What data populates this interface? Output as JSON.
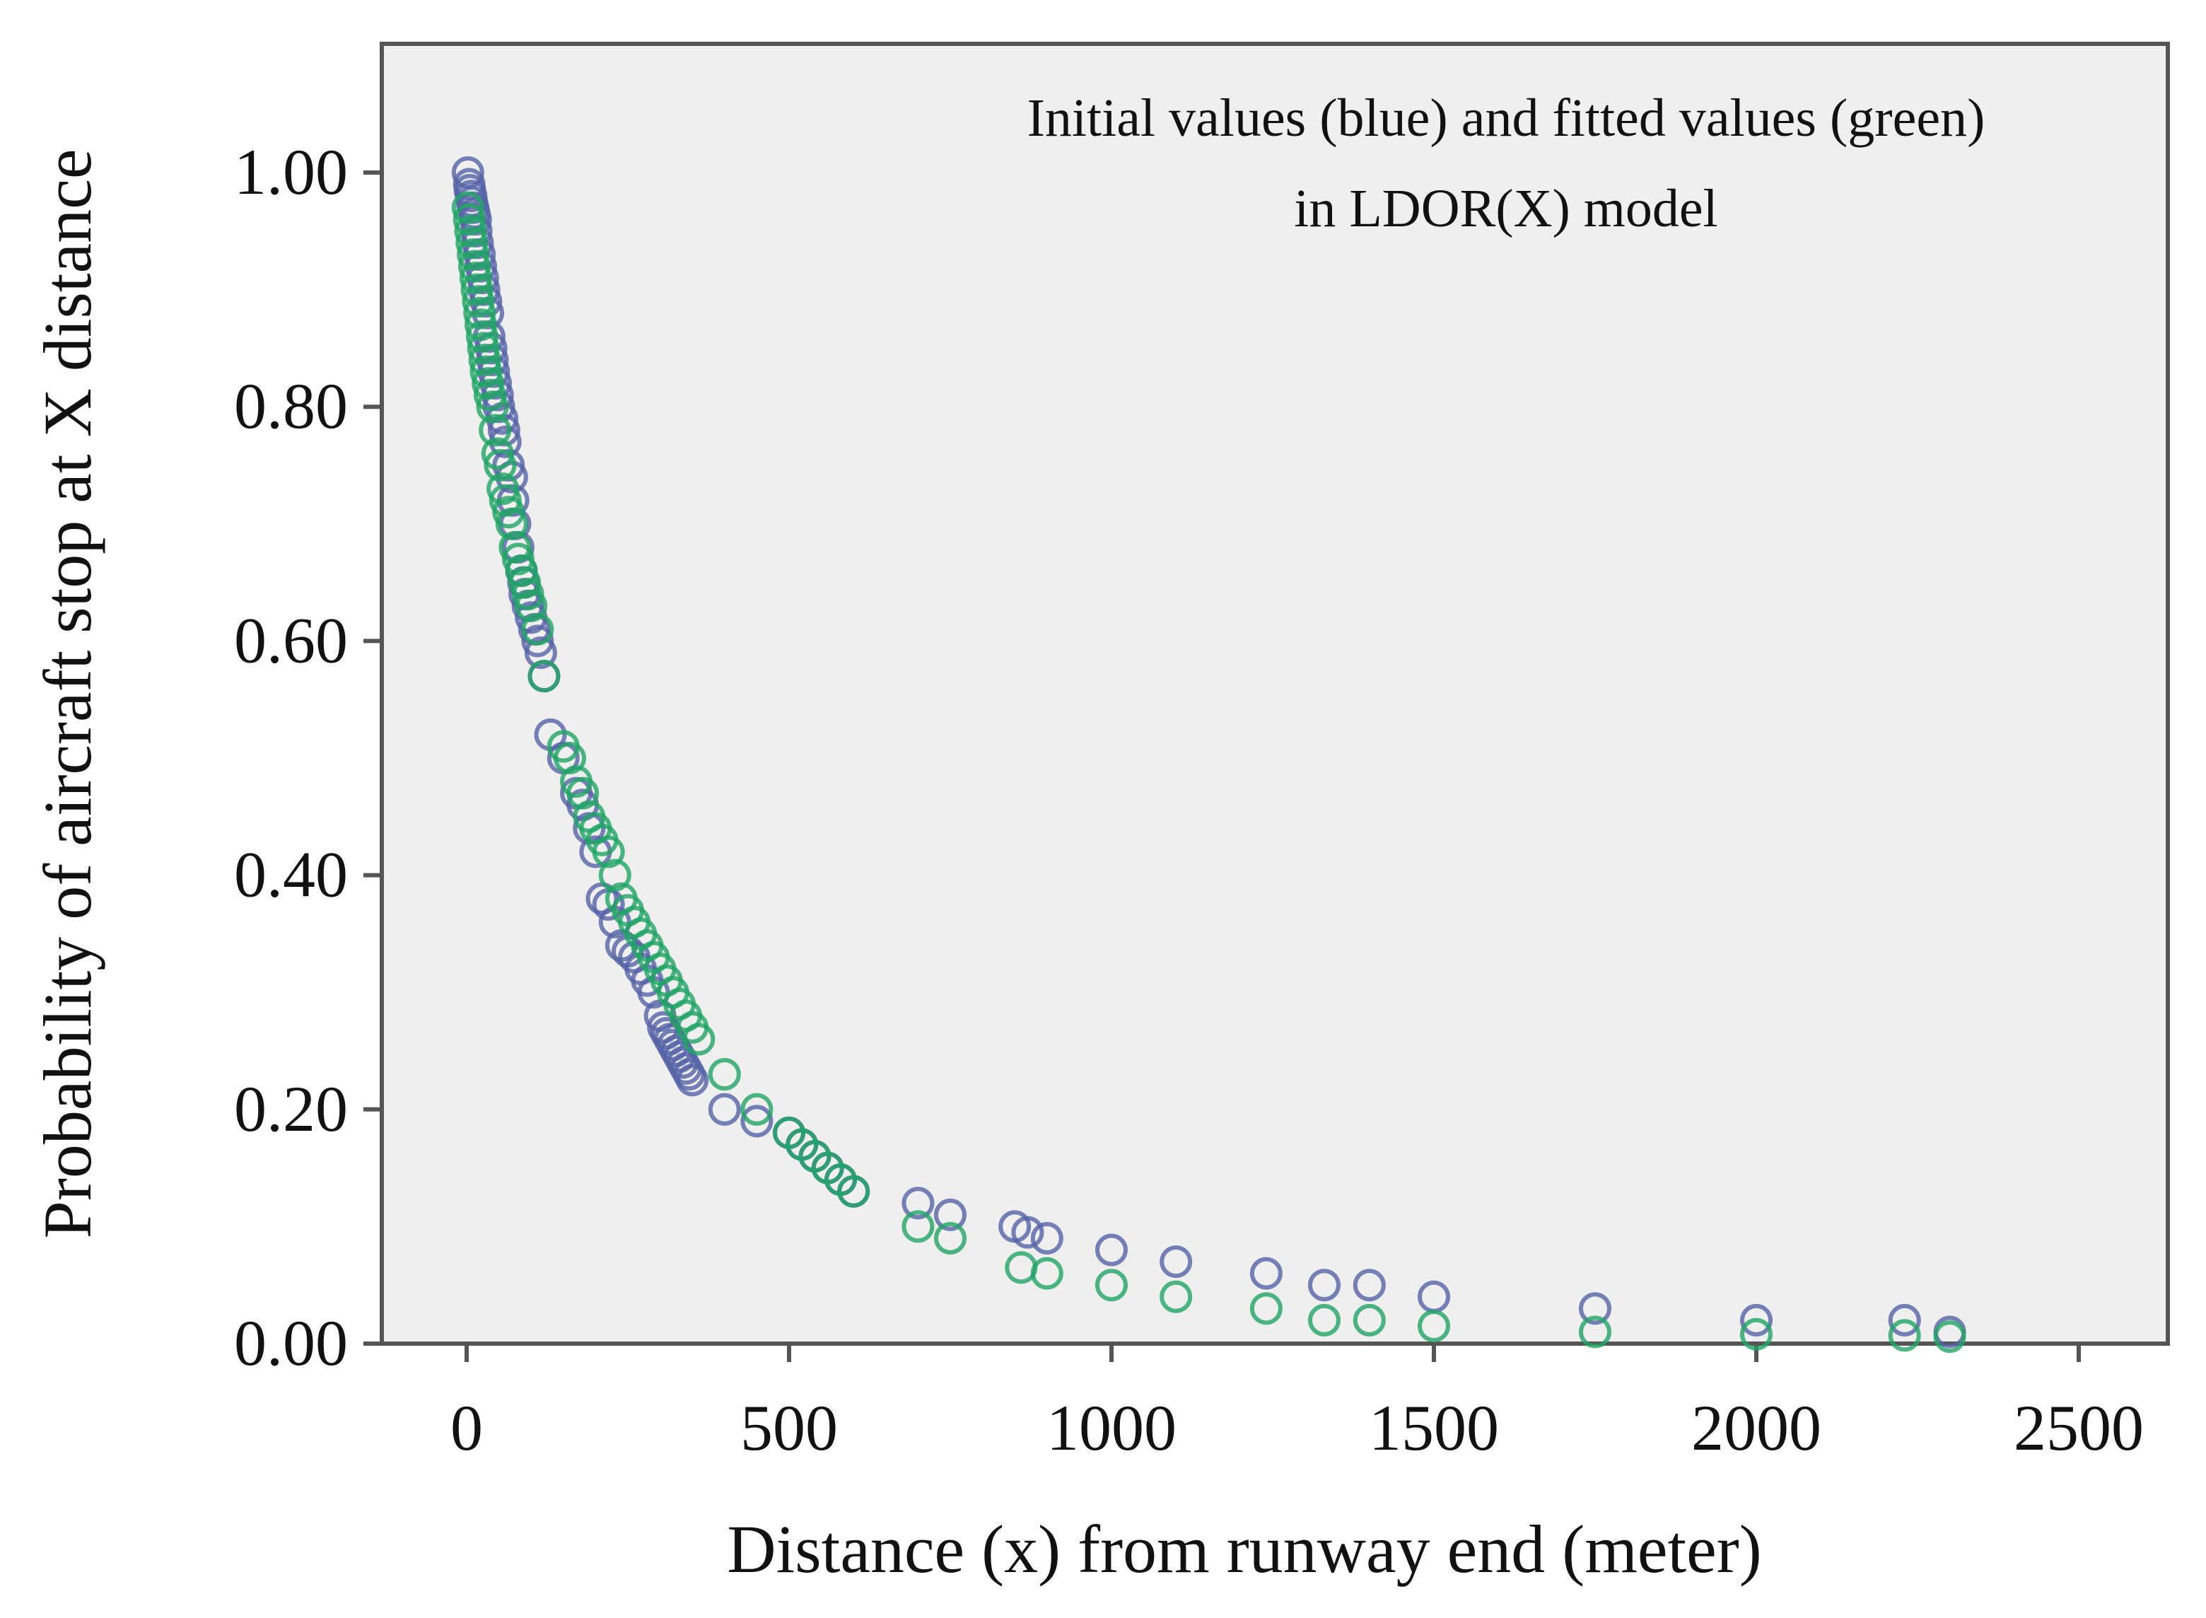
{
  "chart_data": {
    "type": "scatter",
    "title": "",
    "annotation": [
      "Initial values (blue) and fitted values (green)",
      "in LDOR(X) model"
    ],
    "xlabel": "Distance (x) from runway end (meter)",
    "ylabel": "Probability of aircraft stop at X distance",
    "xlim": [
      -150,
      2650
    ],
    "ylim": [
      0,
      1.1
    ],
    "x_ticks": [
      0,
      500,
      1000,
      1500,
      2000,
      2500
    ],
    "x_tick_labels": [
      "0",
      "500",
      "1000",
      "1500",
      "2000",
      "2500"
    ],
    "y_ticks": [
      0,
      0.2,
      0.4,
      0.6,
      0.8,
      1.0
    ],
    "y_tick_labels": [
      "0.00",
      "0.20",
      "0.40",
      "0.60",
      "0.80",
      "1.00"
    ],
    "grid": false,
    "background": "#efefef",
    "series": [
      {
        "name": "Initial values (blue)",
        "color": "#5563a8",
        "x": [
          2,
          4,
          5,
          7,
          8,
          10,
          12,
          14,
          15,
          17,
          20,
          22,
          25,
          27,
          30,
          33,
          35,
          38,
          40,
          42,
          45,
          48,
          50,
          55,
          58,
          60,
          65,
          70,
          72,
          75,
          80,
          85,
          88,
          90,
          95,
          100,
          105,
          110,
          115,
          120,
          130,
          150,
          170,
          180,
          190,
          200,
          210,
          220,
          230,
          240,
          250,
          260,
          270,
          280,
          290,
          300,
          305,
          310,
          315,
          320,
          325,
          330,
          335,
          340,
          345,
          350,
          400,
          450,
          500,
          520,
          540,
          560,
          580,
          600,
          700,
          750,
          850,
          870,
          900,
          1000,
          1100,
          1240,
          1330,
          1400,
          1500,
          1750,
          2000,
          2230,
          2300
        ],
        "y": [
          1.0,
          0.99,
          0.985,
          0.98,
          0.975,
          0.97,
          0.965,
          0.96,
          0.95,
          0.94,
          0.93,
          0.92,
          0.91,
          0.9,
          0.89,
          0.88,
          0.86,
          0.85,
          0.84,
          0.83,
          0.82,
          0.81,
          0.8,
          0.79,
          0.78,
          0.77,
          0.75,
          0.74,
          0.72,
          0.7,
          0.68,
          0.66,
          0.65,
          0.64,
          0.63,
          0.62,
          0.61,
          0.6,
          0.59,
          0.57,
          0.52,
          0.5,
          0.47,
          0.46,
          0.44,
          0.42,
          0.38,
          0.375,
          0.36,
          0.34,
          0.335,
          0.33,
          0.32,
          0.31,
          0.3,
          0.28,
          0.27,
          0.265,
          0.26,
          0.255,
          0.25,
          0.245,
          0.24,
          0.235,
          0.23,
          0.225,
          0.2,
          0.19,
          0.18,
          0.17,
          0.16,
          0.15,
          0.14,
          0.13,
          0.12,
          0.11,
          0.1,
          0.095,
          0.09,
          0.08,
          0.07,
          0.06,
          0.05,
          0.05,
          0.04,
          0.03,
          0.02,
          0.02,
          0.01
        ]
      },
      {
        "name": "Fitted values (green)",
        "color": "#1fa564",
        "x": [
          2,
          4,
          6,
          8,
          10,
          12,
          14,
          16,
          18,
          20,
          22,
          24,
          26,
          28,
          30,
          33,
          36,
          40,
          44,
          48,
          52,
          56,
          60,
          65,
          70,
          75,
          80,
          85,
          90,
          95,
          100,
          110,
          120,
          150,
          160,
          170,
          180,
          190,
          200,
          210,
          220,
          230,
          240,
          250,
          260,
          270,
          280,
          290,
          300,
          310,
          320,
          330,
          340,
          350,
          360,
          400,
          450,
          500,
          520,
          540,
          560,
          580,
          600,
          700,
          750,
          860,
          900,
          1000,
          1100,
          1240,
          1330,
          1400,
          1500,
          1750,
          2000,
          2230,
          2300
        ],
        "y": [
          0.97,
          0.96,
          0.95,
          0.94,
          0.93,
          0.92,
          0.91,
          0.9,
          0.89,
          0.88,
          0.87,
          0.86,
          0.85,
          0.84,
          0.83,
          0.82,
          0.81,
          0.8,
          0.78,
          0.76,
          0.75,
          0.73,
          0.72,
          0.71,
          0.7,
          0.68,
          0.67,
          0.66,
          0.65,
          0.64,
          0.63,
          0.61,
          0.57,
          0.51,
          0.5,
          0.48,
          0.47,
          0.45,
          0.44,
          0.43,
          0.42,
          0.4,
          0.38,
          0.37,
          0.36,
          0.35,
          0.34,
          0.33,
          0.32,
          0.31,
          0.3,
          0.29,
          0.28,
          0.27,
          0.26,
          0.23,
          0.2,
          0.18,
          0.17,
          0.16,
          0.15,
          0.14,
          0.13,
          0.1,
          0.09,
          0.065,
          0.06,
          0.05,
          0.04,
          0.03,
          0.02,
          0.02,
          0.015,
          0.01,
          0.008,
          0.007,
          0.006
        ]
      }
    ]
  }
}
